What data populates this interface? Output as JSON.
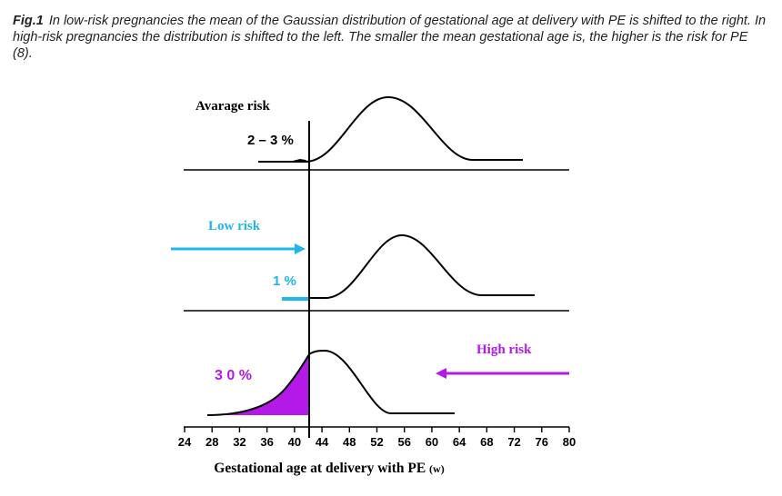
{
  "caption": {
    "label": "Fig.1",
    "text": "In low-risk pregnancies the mean of the Gaussian distribution of gestational age at delivery with PE is shifted to the right. In high-risk pregnancies the distribution is shifted to the left. The smaller the mean gestational age is, the higher is the risk for PE (8)."
  },
  "panels": {
    "average": {
      "label": "Avarage risk",
      "value": "2 – 3 %"
    },
    "low": {
      "label": "Low risk",
      "value": "1 %"
    },
    "high": {
      "label": "High risk",
      "value": "3 0 %"
    }
  },
  "axis": {
    "ticks": [
      "24",
      "28",
      "32",
      "36",
      "40",
      "44",
      "48",
      "52",
      "56",
      "60",
      "64",
      "68",
      "72",
      "76",
      "80"
    ],
    "title": "Gestational age at delivery with PE",
    "unit": "(w)"
  },
  "colors": {
    "low": "#1fb6ea",
    "high": "#b419e8",
    "line": "#000000"
  }
}
